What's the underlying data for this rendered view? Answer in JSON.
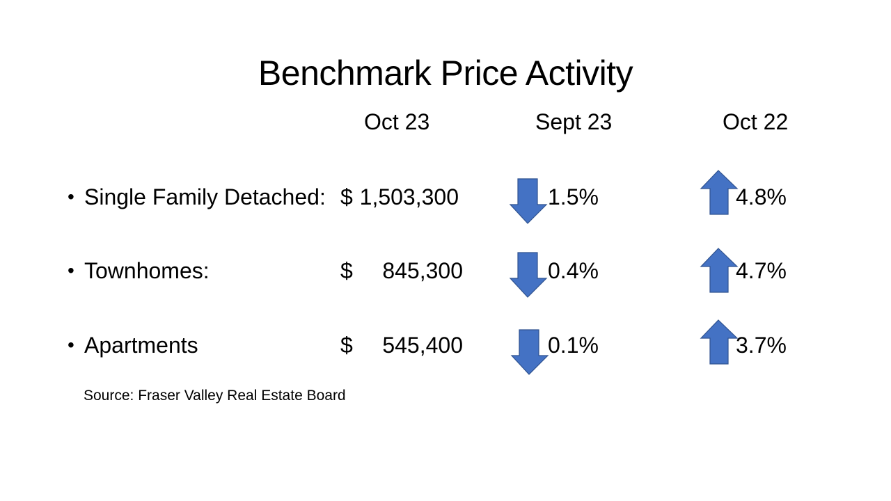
{
  "slide": {
    "title": "Benchmark Price Activity",
    "columns": [
      "Oct 23",
      "Sept 23",
      "Oct 22"
    ],
    "rows": [
      {
        "label": "Single Family Detached:",
        "currency": "$",
        "price": "1,503,300",
        "sept_change": "1.5%",
        "sept_direction": "down",
        "oct_change": "4.8%",
        "oct_direction": "up"
      },
      {
        "label": "Townhomes:",
        "currency": "$",
        "price": "845,300",
        "sept_change": "0.4%",
        "sept_direction": "down",
        "oct_change": "4.7%",
        "oct_direction": "up"
      },
      {
        "label": "Apartments",
        "currency": "$",
        "price": "545,400",
        "sept_change": "0.1%",
        "sept_direction": "down",
        "oct_change": "3.7%",
        "oct_direction": "up"
      }
    ],
    "source": "Source: Fraser Valley Real Estate Board",
    "bullet": "•",
    "arrow_color": "#4472C4",
    "arrow_border_color": "#2F528F"
  }
}
